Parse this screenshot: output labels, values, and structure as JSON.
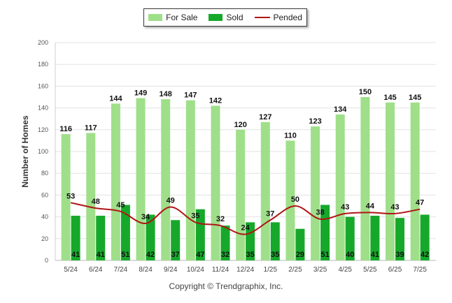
{
  "legend": {
    "for_sale": "For Sale",
    "sold": "Sold",
    "pended": "Pended"
  },
  "copyright": "Copyright © Trendgraphix, Inc.",
  "colors": {
    "for_sale": "#9fdf8a",
    "sold": "#16a82a",
    "pended": "#b01515",
    "grid": "#e3e3e3"
  },
  "chart_data": {
    "type": "bar",
    "categories": [
      "5/24",
      "6/24",
      "7/24",
      "8/24",
      "9/24",
      "10/24",
      "11/24",
      "12/24",
      "1/25",
      "2/25",
      "3/25",
      "4/25",
      "5/25",
      "6/25",
      "7/25"
    ],
    "series": [
      {
        "name": "For Sale",
        "type": "bar",
        "values": [
          116,
          117,
          144,
          149,
          148,
          147,
          142,
          120,
          127,
          110,
          123,
          134,
          150,
          145,
          145
        ]
      },
      {
        "name": "Sold",
        "type": "bar",
        "values": [
          41,
          41,
          51,
          42,
          37,
          47,
          32,
          35,
          35,
          29,
          51,
          40,
          41,
          39,
          42
        ]
      },
      {
        "name": "Pended",
        "type": "line",
        "values": [
          53,
          48,
          45,
          34,
          49,
          35,
          32,
          24,
          37,
          50,
          38,
          43,
          44,
          43,
          47
        ]
      }
    ],
    "ylabel": "Number of Homes",
    "ylim": [
      0,
      200
    ],
    "yticks": [
      0,
      20,
      40,
      60,
      80,
      100,
      120,
      140,
      160,
      180,
      200
    ],
    "grid": true,
    "legend_position": "top-center"
  }
}
